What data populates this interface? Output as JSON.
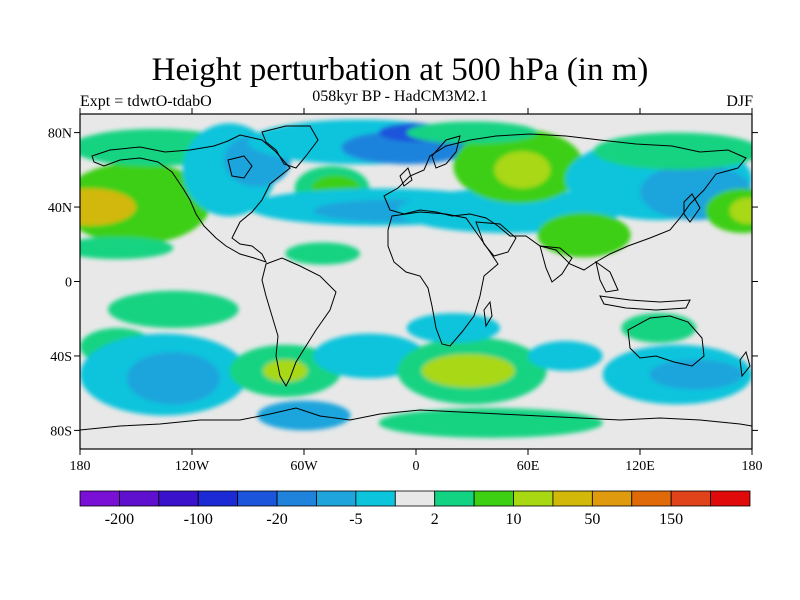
{
  "title": "Height perturbation at 500 hPa (in m)",
  "subtitle": "058kyr BP - HadCM3M2.1",
  "experiment": "Expt = tdwtO-tdabO",
  "season": "DJF",
  "map": {
    "projection": "cylindrical-equidistant",
    "lon_range": [
      -180,
      180
    ],
    "lat_range": [
      -90,
      90
    ],
    "background_color": "#e8e8e8",
    "lat_ticks": [
      {
        "lat": 80,
        "label": "80N"
      },
      {
        "lat": 40,
        "label": "40N"
      },
      {
        "lat": 0,
        "label": "0"
      },
      {
        "lat": -40,
        "label": "40S"
      },
      {
        "lat": -80,
        "label": "80S"
      }
    ],
    "lon_ticks": [
      {
        "lon": -180,
        "label": "180"
      },
      {
        "lon": -120,
        "label": "120W"
      },
      {
        "lon": -60,
        "label": "60W"
      },
      {
        "lon": 0,
        "label": "0"
      },
      {
        "lon": 60,
        "label": "60E"
      },
      {
        "lon": 120,
        "label": "120E"
      },
      {
        "lon": 180,
        "label": "180"
      }
    ]
  },
  "colorbar": {
    "colors": [
      "#7a0fd6",
      "#5f10cf",
      "#3a12cc",
      "#1c2ad6",
      "#1a55dc",
      "#1f83dc",
      "#1fa4dc",
      "#0cc4dc",
      "#e8e8e8",
      "#12d382",
      "#3ccf12",
      "#a8d812",
      "#d2b808",
      "#e09a0e",
      "#e06a08",
      "#e0421a",
      "#e00a0a"
    ],
    "labels": [
      {
        "after_index": 0,
        "label": "-200"
      },
      {
        "after_index": 2,
        "label": "-100"
      },
      {
        "after_index": 4,
        "label": "-20"
      },
      {
        "after_index": 6,
        "label": "-5"
      },
      {
        "after_index": 8,
        "label": "2"
      },
      {
        "after_index": 10,
        "label": "10"
      },
      {
        "after_index": 12,
        "label": "50"
      },
      {
        "after_index": 14,
        "label": "150"
      }
    ]
  },
  "anomaly_fields": [
    {
      "lon": -170,
      "lat": 40,
      "rx": 22,
      "ry": 12,
      "level": 11
    },
    {
      "lon": -150,
      "lat": 42,
      "rx": 40,
      "ry": 22,
      "level": 10
    },
    {
      "lon": -175,
      "lat": 40,
      "rx": 25,
      "ry": 10,
      "level": 12
    },
    {
      "lon": -160,
      "lat": 18,
      "rx": 30,
      "ry": 6,
      "level": 9
    },
    {
      "lon": -140,
      "lat": 72,
      "rx": 45,
      "ry": 10,
      "level": 9
    },
    {
      "lon": -100,
      "lat": 60,
      "rx": 25,
      "ry": 25,
      "level": 7
    },
    {
      "lon": -85,
      "lat": 65,
      "rx": 18,
      "ry": 14,
      "level": 6
    },
    {
      "lon": -45,
      "lat": 50,
      "rx": 20,
      "ry": 12,
      "level": 9
    },
    {
      "lon": -43,
      "lat": 50,
      "rx": 13,
      "ry": 7,
      "level": 10
    },
    {
      "lon": -30,
      "lat": 75,
      "rx": 60,
      "ry": 12,
      "level": 7
    },
    {
      "lon": -5,
      "lat": 72,
      "rx": 35,
      "ry": 9,
      "level": 5
    },
    {
      "lon": 0,
      "lat": 80,
      "rx": 20,
      "ry": 5,
      "level": 4
    },
    {
      "lon": -20,
      "lat": 40,
      "rx": 70,
      "ry": 10,
      "level": 7
    },
    {
      "lon": -10,
      "lat": 38,
      "rx": 45,
      "ry": 6,
      "level": 6
    },
    {
      "lon": 50,
      "lat": 38,
      "rx": 60,
      "ry": 12,
      "level": 7
    },
    {
      "lon": 55,
      "lat": 62,
      "rx": 35,
      "ry": 20,
      "level": 10
    },
    {
      "lon": 57,
      "lat": 60,
      "rx": 15,
      "ry": 10,
      "level": 11
    },
    {
      "lon": 30,
      "lat": 80,
      "rx": 35,
      "ry": 6,
      "level": 9
    },
    {
      "lon": 130,
      "lat": 55,
      "rx": 50,
      "ry": 22,
      "level": 7
    },
    {
      "lon": 150,
      "lat": 48,
      "rx": 30,
      "ry": 15,
      "level": 6
    },
    {
      "lon": 140,
      "lat": 70,
      "rx": 45,
      "ry": 10,
      "level": 9
    },
    {
      "lon": 175,
      "lat": 38,
      "rx": 20,
      "ry": 12,
      "level": 10
    },
    {
      "lon": 178,
      "lat": 38,
      "rx": 10,
      "ry": 7,
      "level": 11
    },
    {
      "lon": 90,
      "lat": 25,
      "rx": 25,
      "ry": 12,
      "level": 10
    },
    {
      "lon": -50,
      "lat": 15,
      "rx": 20,
      "ry": 6,
      "level": 9
    },
    {
      "lon": -130,
      "lat": -15,
      "rx": 35,
      "ry": 10,
      "level": 9
    },
    {
      "lon": -160,
      "lat": -35,
      "rx": 20,
      "ry": 10,
      "level": 9
    },
    {
      "lon": -135,
      "lat": -50,
      "rx": 45,
      "ry": 22,
      "level": 7
    },
    {
      "lon": -130,
      "lat": -52,
      "rx": 25,
      "ry": 14,
      "level": 6
    },
    {
      "lon": -70,
      "lat": -48,
      "rx": 30,
      "ry": 14,
      "level": 9
    },
    {
      "lon": -70,
      "lat": -48,
      "rx": 12,
      "ry": 6,
      "level": 11
    },
    {
      "lon": -25,
      "lat": -40,
      "rx": 30,
      "ry": 12,
      "level": 7
    },
    {
      "lon": 30,
      "lat": -48,
      "rx": 40,
      "ry": 18,
      "level": 9
    },
    {
      "lon": 28,
      "lat": -48,
      "rx": 25,
      "ry": 9,
      "level": 11
    },
    {
      "lon": 20,
      "lat": -25,
      "rx": 25,
      "ry": 8,
      "level": 7
    },
    {
      "lon": 80,
      "lat": -40,
      "rx": 20,
      "ry": 8,
      "level": 7
    },
    {
      "lon": 140,
      "lat": -50,
      "rx": 40,
      "ry": 16,
      "level": 7
    },
    {
      "lon": 150,
      "lat": -50,
      "rx": 25,
      "ry": 8,
      "level": 6
    },
    {
      "lon": 130,
      "lat": -25,
      "rx": 20,
      "ry": 8,
      "level": 9
    },
    {
      "lon": -60,
      "lat": -72,
      "rx": 25,
      "ry": 8,
      "level": 6
    },
    {
      "lon": 40,
      "lat": -76,
      "rx": 60,
      "ry": 8,
      "level": 9
    }
  ]
}
